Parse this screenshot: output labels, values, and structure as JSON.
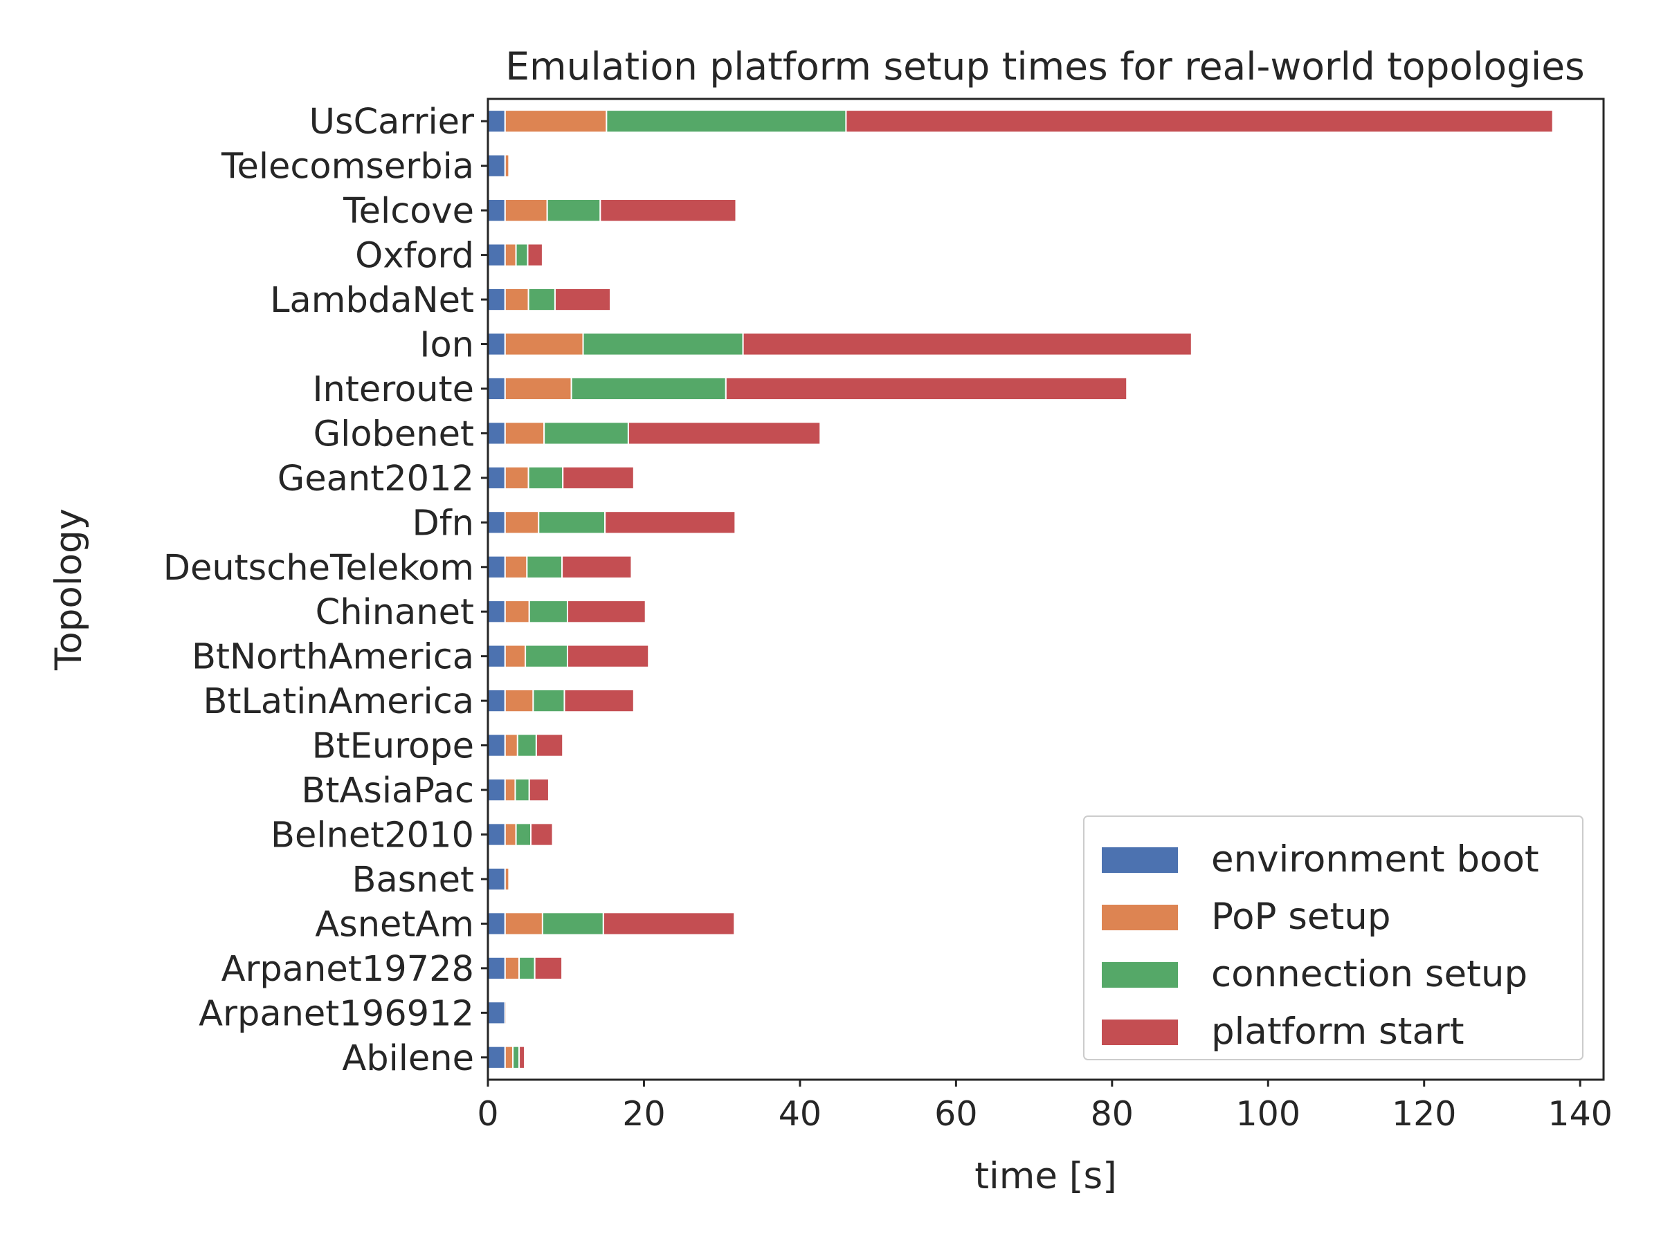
{
  "chart_data": {
    "type": "bar",
    "orientation": "horizontal",
    "stacked": true,
    "title": "Emulation platform setup times for real-world topologies",
    "xlabel": "time [s]",
    "ylabel": "Topology",
    "xlim": [
      0,
      143
    ],
    "xticks": [
      0,
      20,
      40,
      60,
      80,
      100,
      120,
      140
    ],
    "grid": false,
    "legend_position": "lower-right",
    "categories": [
      "Abilene",
      "Arpanet196912",
      "Arpanet19728",
      "AsnetAm",
      "Basnet",
      "Belnet2010",
      "BtAsiaPac",
      "BtEurope",
      "BtLatinAmerica",
      "BtNorthAmerica",
      "Chinanet",
      "DeutscheTelekom",
      "Dfn",
      "Geant2012",
      "Globenet",
      "Interoute",
      "Ion",
      "LambdaNet",
      "Oxford",
      "Telcove",
      "Telecomserbia",
      "UsCarrier"
    ],
    "series": [
      {
        "name": "environment boot",
        "color": "#4c72b0",
        "values": [
          2.2,
          2.2,
          2.2,
          2.2,
          2.2,
          2.2,
          2.2,
          2.2,
          2.2,
          2.2,
          2.2,
          2.2,
          2.2,
          2.2,
          2.2,
          2.2,
          2.2,
          2.2,
          2.2,
          2.2,
          2.2,
          2.2
        ]
      },
      {
        "name": "PoP setup",
        "color": "#dd8452",
        "values": [
          1.0,
          0.2,
          1.8,
          4.8,
          0.5,
          1.4,
          1.3,
          1.6,
          3.6,
          2.6,
          3.1,
          2.8,
          4.3,
          3.0,
          5.0,
          8.5,
          10.0,
          3.0,
          1.4,
          5.4,
          0.5,
          13.0
        ]
      },
      {
        "name": "connection setup",
        "color": "#55a868",
        "values": [
          0.8,
          0.05,
          2.0,
          7.8,
          0.05,
          1.9,
          1.8,
          2.4,
          4.0,
          5.4,
          4.9,
          4.5,
          8.5,
          4.4,
          10.8,
          19.8,
          20.5,
          3.4,
          1.5,
          6.8,
          0.05,
          30.7
        ]
      },
      {
        "name": "platform start",
        "color": "#c44e52",
        "values": [
          0.7,
          0.05,
          3.5,
          16.8,
          0.05,
          2.8,
          2.5,
          3.4,
          8.9,
          10.4,
          10.0,
          8.9,
          16.7,
          9.1,
          24.6,
          51.4,
          57.5,
          7.1,
          1.9,
          17.4,
          0.05,
          90.6
        ]
      }
    ]
  }
}
